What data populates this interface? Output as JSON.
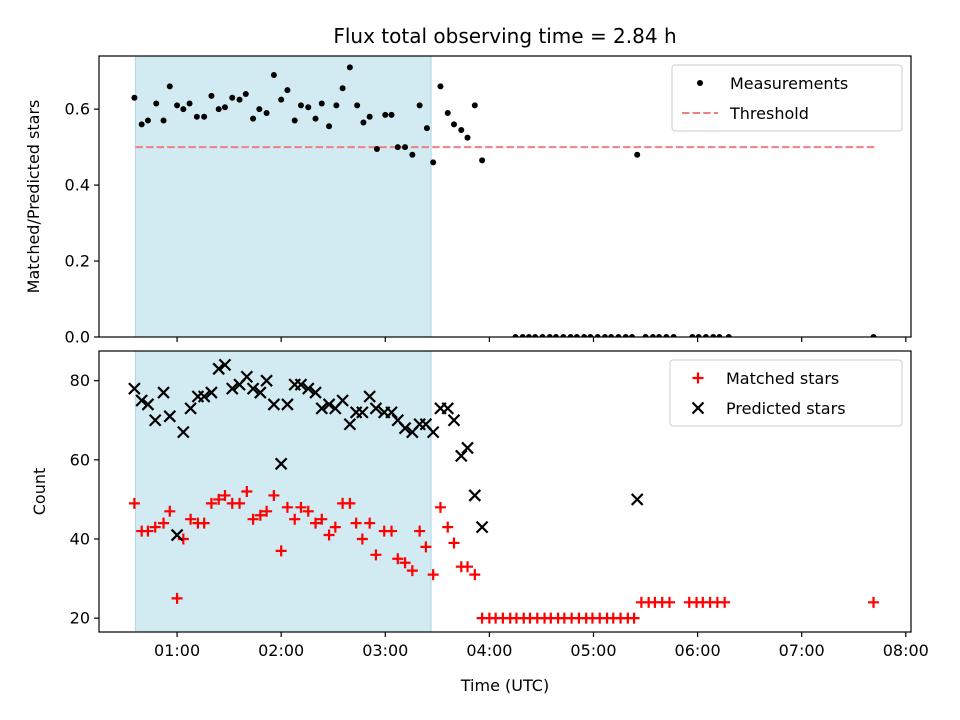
{
  "chart_data": {
    "title": "Flux total observing time = 2.84 h",
    "xlabel": "Time (UTC)",
    "x_unit": "hours UTC",
    "xlim": [
      0.25,
      8.05
    ],
    "x_ticks": [
      {
        "value": 1,
        "label": "01:00"
      },
      {
        "value": 2,
        "label": "02:00"
      },
      {
        "value": 3,
        "label": "03:00"
      },
      {
        "value": 4,
        "label": "04:00"
      },
      {
        "value": 5,
        "label": "05:00"
      },
      {
        "value": 6,
        "label": "06:00"
      },
      {
        "value": 7,
        "label": "07:00"
      },
      {
        "value": 8,
        "label": "08:00"
      }
    ],
    "observing_window": {
      "start": 0.6,
      "end": 3.44,
      "color": "#add8e6"
    },
    "panels": [
      {
        "name": "ratio",
        "type": "scatter",
        "ylabel": "Matched/Predicted stars",
        "ylim": [
          0,
          0.74
        ],
        "y_ticks": [
          {
            "value": 0.0,
            "label": "0.0"
          },
          {
            "value": 0.2,
            "label": "0.2"
          },
          {
            "value": 0.4,
            "label": "0.4"
          },
          {
            "value": 0.6,
            "label": "0.6"
          }
        ],
        "legend": {
          "position": "top-right",
          "entries": [
            {
              "label": "Measurements",
              "marker": "dot",
              "color": "#000000"
            },
            {
              "label": "Threshold",
              "marker": "dashed-line",
              "color": "#f08080"
            }
          ]
        },
        "threshold": {
          "value": 0.5,
          "x": [
            0.6,
            7.7
          ],
          "color": "#f08080"
        },
        "series": [
          {
            "name": "Measurements",
            "marker": "dot",
            "color": "#000000",
            "points": [
              [
                0.59,
                0.63
              ],
              [
                0.66,
                0.56
              ],
              [
                0.72,
                0.57
              ],
              [
                0.8,
                0.615
              ],
              [
                0.87,
                0.57
              ],
              [
                0.93,
                0.66
              ],
              [
                1.0,
                0.61
              ],
              [
                1.06,
                0.6
              ],
              [
                1.12,
                0.615
              ],
              [
                1.19,
                0.58
              ],
              [
                1.26,
                0.58
              ],
              [
                1.33,
                0.635
              ],
              [
                1.4,
                0.6
              ],
              [
                1.46,
                0.605
              ],
              [
                1.53,
                0.63
              ],
              [
                1.6,
                0.625
              ],
              [
                1.66,
                0.64
              ],
              [
                1.73,
                0.575
              ],
              [
                1.79,
                0.6
              ],
              [
                1.86,
                0.59
              ],
              [
                1.93,
                0.69
              ],
              [
                2.0,
                0.625
              ],
              [
                2.06,
                0.65
              ],
              [
                2.13,
                0.57
              ],
              [
                2.19,
                0.61
              ],
              [
                2.26,
                0.605
              ],
              [
                2.33,
                0.575
              ],
              [
                2.39,
                0.615
              ],
              [
                2.46,
                0.555
              ],
              [
                2.53,
                0.61
              ],
              [
                2.59,
                0.655
              ],
              [
                2.66,
                0.71
              ],
              [
                2.73,
                0.61
              ],
              [
                2.79,
                0.565
              ],
              [
                2.85,
                0.58
              ],
              [
                2.92,
                0.495
              ],
              [
                3.0,
                0.585
              ],
              [
                3.06,
                0.585
              ],
              [
                3.12,
                0.5
              ],
              [
                3.19,
                0.5
              ],
              [
                3.26,
                0.48
              ],
              [
                3.33,
                0.61
              ],
              [
                3.4,
                0.55
              ],
              [
                3.46,
                0.46
              ],
              [
                3.53,
                0.66
              ],
              [
                3.6,
                0.59
              ],
              [
                3.66,
                0.56
              ],
              [
                3.73,
                0.545
              ],
              [
                3.79,
                0.525
              ],
              [
                3.86,
                0.61
              ],
              [
                3.93,
                0.465
              ],
              [
                4.25,
                0.0
              ],
              [
                4.32,
                0.0
              ],
              [
                4.38,
                0.0
              ],
              [
                4.44,
                0.0
              ],
              [
                4.51,
                0.0
              ],
              [
                4.58,
                0.0
              ],
              [
                4.64,
                0.0
              ],
              [
                4.71,
                0.0
              ],
              [
                4.78,
                0.0
              ],
              [
                4.84,
                0.0
              ],
              [
                4.91,
                0.0
              ],
              [
                4.97,
                0.0
              ],
              [
                5.04,
                0.0
              ],
              [
                5.11,
                0.0
              ],
              [
                5.17,
                0.0
              ],
              [
                5.24,
                0.0
              ],
              [
                5.31,
                0.0
              ],
              [
                5.37,
                0.0
              ],
              [
                5.42,
                0.48
              ],
              [
                5.5,
                0.0
              ],
              [
                5.57,
                0.0
              ],
              [
                5.63,
                0.0
              ],
              [
                5.7,
                0.0
              ],
              [
                5.77,
                0.0
              ],
              [
                5.95,
                0.0
              ],
              [
                6.01,
                0.0
              ],
              [
                6.08,
                0.0
              ],
              [
                6.15,
                0.0
              ],
              [
                6.21,
                0.0
              ],
              [
                6.3,
                0.0
              ],
              [
                7.69,
                0.0
              ]
            ]
          }
        ]
      },
      {
        "name": "counts",
        "type": "scatter",
        "ylabel": "Count",
        "ylim": [
          16.5,
          87.5
        ],
        "y_ticks": [
          {
            "value": 20,
            "label": "20"
          },
          {
            "value": 40,
            "label": "40"
          },
          {
            "value": 60,
            "label": "60"
          },
          {
            "value": 80,
            "label": "80"
          }
        ],
        "legend": {
          "position": "top-right",
          "entries": [
            {
              "label": "Matched stars",
              "marker": "plus",
              "color": "#ff0000"
            },
            {
              "label": "Predicted stars",
              "marker": "x",
              "color": "#000000"
            }
          ]
        },
        "series": [
          {
            "name": "Matched stars",
            "marker": "plus",
            "color": "#ff0000",
            "points": [
              [
                0.59,
                49
              ],
              [
                0.66,
                42
              ],
              [
                0.72,
                42
              ],
              [
                0.79,
                43
              ],
              [
                0.87,
                44
              ],
              [
                0.93,
                47
              ],
              [
                1.0,
                25
              ],
              [
                1.06,
                40
              ],
              [
                1.13,
                45
              ],
              [
                1.2,
                44
              ],
              [
                1.26,
                44
              ],
              [
                1.33,
                49
              ],
              [
                1.4,
                50
              ],
              [
                1.46,
                51
              ],
              [
                1.53,
                49
              ],
              [
                1.6,
                49
              ],
              [
                1.67,
                52
              ],
              [
                1.73,
                45
              ],
              [
                1.8,
                46
              ],
              [
                1.86,
                47
              ],
              [
                1.93,
                51
              ],
              [
                2.0,
                37
              ],
              [
                2.06,
                48
              ],
              [
                2.13,
                45
              ],
              [
                2.19,
                48
              ],
              [
                2.26,
                47
              ],
              [
                2.33,
                44
              ],
              [
                2.39,
                45
              ],
              [
                2.46,
                41
              ],
              [
                2.52,
                43
              ],
              [
                2.59,
                49
              ],
              [
                2.66,
                49
              ],
              [
                2.72,
                44
              ],
              [
                2.78,
                40
              ],
              [
                2.85,
                44
              ],
              [
                2.91,
                36
              ],
              [
                2.99,
                42
              ],
              [
                3.06,
                42
              ],
              [
                3.12,
                35
              ],
              [
                3.19,
                34
              ],
              [
                3.26,
                32
              ],
              [
                3.33,
                42
              ],
              [
                3.39,
                38
              ],
              [
                3.46,
                31
              ],
              [
                3.53,
                48
              ],
              [
                3.6,
                43
              ],
              [
                3.66,
                39
              ],
              [
                3.73,
                33
              ],
              [
                3.79,
                33
              ],
              [
                3.86,
                31
              ],
              [
                3.93,
                20
              ],
              [
                4.0,
                20
              ],
              [
                4.06,
                20
              ],
              [
                4.13,
                20
              ],
              [
                4.2,
                20
              ],
              [
                4.26,
                20
              ],
              [
                4.33,
                20
              ],
              [
                4.39,
                20
              ],
              [
                4.46,
                20
              ],
              [
                4.53,
                20
              ],
              [
                4.59,
                20
              ],
              [
                4.66,
                20
              ],
              [
                4.72,
                20
              ],
              [
                4.79,
                20
              ],
              [
                4.86,
                20
              ],
              [
                4.93,
                20
              ],
              [
                4.99,
                20
              ],
              [
                5.06,
                20
              ],
              [
                5.13,
                20
              ],
              [
                5.19,
                20
              ],
              [
                5.26,
                20
              ],
              [
                5.33,
                20
              ],
              [
                5.39,
                20
              ],
              [
                5.46,
                24
              ],
              [
                5.53,
                24
              ],
              [
                5.59,
                24
              ],
              [
                5.66,
                24
              ],
              [
                5.73,
                24
              ],
              [
                5.92,
                24
              ],
              [
                5.99,
                24
              ],
              [
                6.05,
                24
              ],
              [
                6.12,
                24
              ],
              [
                6.19,
                24
              ],
              [
                6.26,
                24
              ],
              [
                7.69,
                24
              ]
            ]
          },
          {
            "name": "Predicted stars",
            "marker": "x",
            "color": "#000000",
            "points": [
              [
                0.59,
                78
              ],
              [
                0.66,
                75
              ],
              [
                0.72,
                74
              ],
              [
                0.79,
                70
              ],
              [
                0.87,
                77
              ],
              [
                0.93,
                71
              ],
              [
                1.0,
                41
              ],
              [
                1.06,
                67
              ],
              [
                1.13,
                73
              ],
              [
                1.2,
                76
              ],
              [
                1.26,
                76
              ],
              [
                1.33,
                77
              ],
              [
                1.4,
                83
              ],
              [
                1.46,
                84
              ],
              [
                1.53,
                78
              ],
              [
                1.6,
                79
              ],
              [
                1.67,
                81
              ],
              [
                1.73,
                78
              ],
              [
                1.8,
                77
              ],
              [
                1.86,
                80
              ],
              [
                1.93,
                74
              ],
              [
                2.0,
                59
              ],
              [
                2.06,
                74
              ],
              [
                2.13,
                79
              ],
              [
                2.19,
                79
              ],
              [
                2.26,
                78
              ],
              [
                2.33,
                77
              ],
              [
                2.39,
                73
              ],
              [
                2.46,
                74
              ],
              [
                2.52,
                73
              ],
              [
                2.59,
                75
              ],
              [
                2.66,
                69
              ],
              [
                2.72,
                72
              ],
              [
                2.78,
                72
              ],
              [
                2.85,
                76
              ],
              [
                2.91,
                73
              ],
              [
                2.99,
                72
              ],
              [
                3.06,
                72
              ],
              [
                3.12,
                70
              ],
              [
                3.19,
                68
              ],
              [
                3.26,
                67
              ],
              [
                3.33,
                69
              ],
              [
                3.39,
                69
              ],
              [
                3.46,
                67
              ],
              [
                3.53,
                73
              ],
              [
                3.6,
                73
              ],
              [
                3.66,
                70
              ],
              [
                3.73,
                61
              ],
              [
                3.79,
                63
              ],
              [
                3.86,
                51
              ],
              [
                3.93,
                43
              ],
              [
                5.42,
                50
              ]
            ]
          }
        ]
      }
    ]
  }
}
